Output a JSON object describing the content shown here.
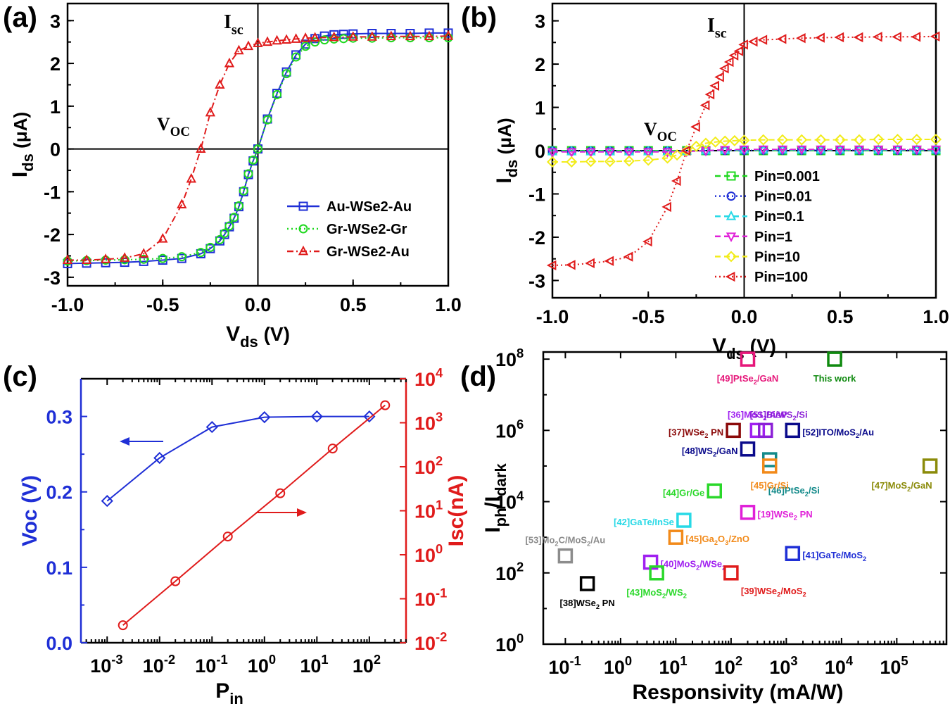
{
  "figure": {
    "panels": [
      {
        "letter_left": "(",
        "letter": "a",
        "letter_right": ")"
      },
      {
        "letter_left": "(",
        "letter": "b",
        "letter_right": ")"
      },
      {
        "letter_left": "(",
        "letter": "c",
        "letter_right": ")"
      },
      {
        "letter_left": "(",
        "letter": "d",
        "letter_right": ")"
      }
    ]
  },
  "chart_data": [
    {
      "id": "a",
      "type": "line",
      "xlabel": "V",
      "xlabel_sub": "ds",
      "xlabel_unit": " (V)",
      "ylabel": "I",
      "ylabel_sub": "ds",
      "ylabel_unit": " (μA)",
      "xlim": [
        -1.0,
        1.0
      ],
      "ylim": [
        -3.2,
        3.4
      ],
      "xticks": [
        "-1.0",
        "-0.5",
        "0.0",
        "0.5",
        "1.0"
      ],
      "yticks": [
        "-3",
        "-2",
        "-1",
        "0",
        "1",
        "2",
        "3"
      ],
      "annotations": [
        {
          "text": "I",
          "sub": "sc"
        },
        {
          "text": "V",
          "sub": "OC"
        }
      ],
      "series": [
        {
          "name": "Au-WSe2-Au",
          "color": "#1f2fd6",
          "marker": "square",
          "dash": "solid",
          "x": [
            -1.0,
            -0.9,
            -0.8,
            -0.7,
            -0.6,
            -0.5,
            -0.4,
            -0.3,
            -0.25,
            -0.2,
            -0.175,
            -0.15,
            -0.125,
            -0.1,
            -0.075,
            -0.05,
            -0.025,
            0,
            0.05,
            0.1,
            0.15,
            0.2,
            0.25,
            0.3,
            0.35,
            0.4,
            0.45,
            0.5,
            0.6,
            0.7,
            0.8,
            0.9,
            1.0
          ],
          "y": [
            -2.68,
            -2.67,
            -2.66,
            -2.65,
            -2.63,
            -2.6,
            -2.56,
            -2.45,
            -2.33,
            -2.15,
            -2.0,
            -1.82,
            -1.62,
            -1.35,
            -1.0,
            -0.6,
            -0.28,
            0,
            0.7,
            1.3,
            1.8,
            2.2,
            2.45,
            2.58,
            2.64,
            2.67,
            2.68,
            2.69,
            2.7,
            2.7,
            2.7,
            2.71,
            2.71
          ]
        },
        {
          "name": "Gr-WSe2-Gr",
          "color": "#1fd81f",
          "marker": "circle",
          "dash": "dot",
          "x": [
            -1.0,
            -0.9,
            -0.8,
            -0.7,
            -0.6,
            -0.5,
            -0.4,
            -0.3,
            -0.25,
            -0.2,
            -0.175,
            -0.15,
            -0.125,
            -0.1,
            -0.075,
            -0.05,
            -0.025,
            0,
            0.05,
            0.1,
            0.15,
            0.2,
            0.25,
            0.3,
            0.35,
            0.4,
            0.45,
            0.5,
            0.6,
            0.7,
            0.8,
            0.9,
            1.0
          ],
          "y": [
            -2.62,
            -2.61,
            -2.6,
            -2.59,
            -2.58,
            -2.56,
            -2.52,
            -2.42,
            -2.3,
            -2.12,
            -1.97,
            -1.8,
            -1.6,
            -1.33,
            -0.98,
            -0.58,
            -0.26,
            0,
            0.68,
            1.27,
            1.76,
            2.15,
            2.4,
            2.5,
            2.55,
            2.57,
            2.58,
            2.59,
            2.59,
            2.6,
            2.6,
            2.6,
            2.6
          ]
        },
        {
          "name": "Gr-WSe2-Au",
          "color": "#e01b1b",
          "marker": "triangle",
          "dash": "dashdot",
          "x": [
            -1.0,
            -0.9,
            -0.8,
            -0.7,
            -0.6,
            -0.5,
            -0.4,
            -0.35,
            -0.3,
            -0.25,
            -0.2,
            -0.15,
            -0.1,
            -0.05,
            0,
            0.05,
            0.1,
            0.15,
            0.2,
            0.25,
            0.3,
            0.4,
            0.5,
            0.6,
            0.7,
            0.8,
            0.9,
            1.0
          ],
          "y": [
            -2.6,
            -2.6,
            -2.58,
            -2.55,
            -2.45,
            -2.1,
            -1.3,
            -0.7,
            0,
            0.85,
            1.5,
            2.0,
            2.3,
            2.4,
            2.47,
            2.5,
            2.53,
            2.55,
            2.57,
            2.59,
            2.6,
            2.61,
            2.62,
            2.62,
            2.63,
            2.63,
            2.63,
            2.64
          ]
        }
      ]
    },
    {
      "id": "b",
      "type": "line",
      "xlabel": "V",
      "xlabel_sub": "ds",
      "xlabel_unit": " (V)",
      "ylabel": "I",
      "ylabel_sub": "ds",
      "ylabel_unit": " (μA)",
      "xlim": [
        -1.0,
        1.0
      ],
      "ylim": [
        -3.4,
        3.4
      ],
      "xticks": [
        "-1.0",
        "-0.5",
        "0.0",
        "0.5",
        "1.0"
      ],
      "yticks": [
        "-3",
        "-2",
        "-1",
        "0",
        "1",
        "2",
        "3"
      ],
      "annotations": [
        {
          "text": "I",
          "sub": "sc"
        },
        {
          "text": "V",
          "sub": "OC"
        }
      ],
      "series": [
        {
          "name": "Pin=0.001",
          "color": "#1fd81f",
          "marker": "square",
          "dash": "dash",
          "x": [
            -1.0,
            -0.9,
            -0.8,
            -0.7,
            -0.6,
            -0.5,
            -0.4,
            -0.3,
            -0.2,
            -0.1,
            0,
            0.1,
            0.2,
            0.3,
            0.4,
            0.5,
            0.6,
            0.7,
            0.8,
            0.9,
            1.0
          ],
          "y": [
            0,
            0,
            0,
            0,
            0,
            0,
            0,
            0,
            0,
            0,
            0,
            0,
            0,
            0,
            0,
            0,
            0,
            0,
            0,
            0,
            0
          ]
        },
        {
          "name": "Pin=0.01",
          "color": "#1f2fd6",
          "marker": "circle",
          "dash": "dot",
          "x": [
            -1.0,
            -0.9,
            -0.8,
            -0.7,
            -0.6,
            -0.5,
            -0.4,
            -0.3,
            -0.2,
            -0.1,
            0,
            0.1,
            0.2,
            0.3,
            0.4,
            0.5,
            0.6,
            0.7,
            0.8,
            0.9,
            1.0
          ],
          "y": [
            -0.01,
            -0.01,
            -0.01,
            -0.01,
            -0.01,
            -0.01,
            -0.01,
            -0.005,
            0,
            0.003,
            0.005,
            0.01,
            0.01,
            0.01,
            0.01,
            0.01,
            0.01,
            0.01,
            0.01,
            0.01,
            0.01
          ]
        },
        {
          "name": "Pin=0.1",
          "color": "#27d9e6",
          "marker": "triangle",
          "dash": "dash",
          "x": [
            -1.0,
            -0.9,
            -0.8,
            -0.7,
            -0.6,
            -0.5,
            -0.4,
            -0.3,
            -0.2,
            -0.1,
            0,
            0.1,
            0.2,
            0.3,
            0.4,
            0.5,
            0.6,
            0.7,
            0.8,
            0.9,
            1.0
          ],
          "y": [
            -0.02,
            -0.02,
            -0.02,
            -0.02,
            -0.02,
            -0.02,
            -0.02,
            -0.01,
            0,
            0.01,
            0.02,
            0.02,
            0.02,
            0.02,
            0.02,
            0.02,
            0.02,
            0.02,
            0.02,
            0.02,
            0.02
          ]
        },
        {
          "name": "Pin=1",
          "color": "#e020d8",
          "marker": "triangle-down",
          "dash": "dash",
          "x": [
            -1.0,
            -0.9,
            -0.8,
            -0.7,
            -0.6,
            -0.5,
            -0.4,
            -0.3,
            -0.2,
            -0.1,
            0,
            0.1,
            0.2,
            0.3,
            0.4,
            0.5,
            0.6,
            0.7,
            0.8,
            0.9,
            1.0
          ],
          "y": [
            -0.03,
            -0.03,
            -0.03,
            -0.03,
            -0.03,
            -0.03,
            -0.03,
            -0.02,
            0,
            0.02,
            0.03,
            0.03,
            0.03,
            0.03,
            0.03,
            0.03,
            0.03,
            0.03,
            0.03,
            0.03,
            0.03
          ]
        },
        {
          "name": "Pin=10",
          "color": "#f2ec1a",
          "marker": "diamond",
          "dash": "dash",
          "x": [
            -1.0,
            -0.9,
            -0.8,
            -0.7,
            -0.6,
            -0.5,
            -0.4,
            -0.35,
            -0.3,
            -0.25,
            -0.2,
            -0.15,
            -0.1,
            -0.05,
            0,
            0.1,
            0.2,
            0.3,
            0.4,
            0.5,
            0.6,
            0.7,
            0.8,
            0.9,
            1.0
          ],
          "y": [
            -0.26,
            -0.26,
            -0.25,
            -0.25,
            -0.24,
            -0.22,
            -0.17,
            -0.1,
            0,
            0.1,
            0.17,
            0.2,
            0.22,
            0.23,
            0.24,
            0.25,
            0.25,
            0.25,
            0.25,
            0.25,
            0.25,
            0.26,
            0.26,
            0.26,
            0.26
          ]
        },
        {
          "name": "Pin=100",
          "color": "#e01b1b",
          "marker": "triangle-left",
          "dash": "dot",
          "x": [
            -1.0,
            -0.9,
            -0.8,
            -0.7,
            -0.6,
            -0.5,
            -0.4,
            -0.35,
            -0.3,
            -0.25,
            -0.2,
            -0.175,
            -0.15,
            -0.125,
            -0.1,
            -0.075,
            -0.05,
            -0.025,
            0,
            0.05,
            0.1,
            0.2,
            0.3,
            0.4,
            0.5,
            0.6,
            0.7,
            0.8,
            0.9,
            1.0
          ],
          "y": [
            -2.65,
            -2.64,
            -2.6,
            -2.55,
            -2.45,
            -2.1,
            -1.3,
            -0.7,
            0,
            0.55,
            1.05,
            1.3,
            1.5,
            1.7,
            1.9,
            2.05,
            2.2,
            2.3,
            2.45,
            2.52,
            2.56,
            2.58,
            2.6,
            2.61,
            2.62,
            2.62,
            2.63,
            2.63,
            2.63,
            2.64
          ]
        }
      ]
    },
    {
      "id": "c",
      "type": "line",
      "xlabel": "P",
      "xlabel_sub": "in",
      "ylabel_left": "Voc (V)",
      "ylabel_right": "Isc(nA)",
      "left_color": "#1f2fd6",
      "right_color": "#e01b1b",
      "x_log_range": [
        -3.5,
        2.7
      ],
      "ylim_left": [
        0.0,
        0.35
      ],
      "y_log_range_right": [
        -2,
        4
      ],
      "xticks": [
        {
          "base": "10",
          "exp": "-3"
        },
        {
          "base": "10",
          "exp": "-2"
        },
        {
          "base": "10",
          "exp": "-1"
        },
        {
          "base": "10",
          "exp": "0"
        },
        {
          "base": "10",
          "exp": "1"
        },
        {
          "base": "10",
          "exp": "2"
        }
      ],
      "yticks_left": [
        "0.0",
        "0.1",
        "0.2",
        "0.3"
      ],
      "yticks_right": [
        {
          "base": "10",
          "exp": "-2"
        },
        {
          "base": "10",
          "exp": "-1"
        },
        {
          "base": "10",
          "exp": "0"
        },
        {
          "base": "10",
          "exp": "1"
        },
        {
          "base": "10",
          "exp": "2"
        },
        {
          "base": "10",
          "exp": "3"
        },
        {
          "base": "10",
          "exp": "4"
        }
      ],
      "series": [
        {
          "name": "Voc",
          "axis": "left",
          "color": "#1f2fd6",
          "marker": "diamond",
          "x": [
            0.001,
            0.01,
            0.1,
            1,
            10,
            100
          ],
          "y": [
            0.188,
            0.245,
            0.286,
            0.299,
            0.3,
            0.3
          ]
        },
        {
          "name": "Isc",
          "axis": "right",
          "color": "#e01b1b",
          "marker": "circle",
          "x": [
            0.002,
            0.02,
            0.2,
            2,
            20,
            200
          ],
          "y": [
            0.025,
            0.25,
            2.6,
            25,
            260,
            2500
          ]
        }
      ]
    },
    {
      "id": "d",
      "type": "scatter",
      "xlabel": "Responsivity (mA/W)",
      "ylabel": "I",
      "ylabel_sub1": "ph",
      "ylabel_mid": "/I",
      "ylabel_sub2": "dark",
      "x_log_range": [
        -1.4,
        5.9
      ],
      "y_log_range": [
        0,
        8.2
      ],
      "xticks": [
        {
          "base": "10",
          "exp": "-1"
        },
        {
          "base": "10",
          "exp": "0"
        },
        {
          "base": "10",
          "exp": "1"
        },
        {
          "base": "10",
          "exp": "2"
        },
        {
          "base": "10",
          "exp": "3"
        },
        {
          "base": "10",
          "exp": "4"
        },
        {
          "base": "10",
          "exp": "5"
        }
      ],
      "yticks": [
        {
          "base": "10",
          "exp": "0"
        },
        {
          "base": "10",
          "exp": "2"
        },
        {
          "base": "10",
          "exp": "4"
        },
        {
          "base": "10",
          "exp": "6"
        },
        {
          "base": "10",
          "exp": "8"
        }
      ],
      "points": [
        {
          "parts": [
            "[49]PtSe",
            "2",
            "/GaN"
          ],
          "x": 200,
          "y": 100000000,
          "color": "#e6177a",
          "label_pos": "below"
        },
        {
          "parts": [
            "This work"
          ],
          "x": 7500,
          "y": 100000000,
          "color": "#0f8a0f",
          "label_pos": "below"
        },
        {
          "parts": [
            "[36]MoS",
            "2",
            "/AsP"
          ],
          "x": 300,
          "y": 1000000,
          "color": "#a020f0",
          "label_pos": "above"
        },
        {
          "parts": [
            "[51]Bi/WS",
            "2",
            "/Si"
          ],
          "x": 420,
          "y": 1000000,
          "color": "#8b1fd6",
          "label_pos": "above2"
        },
        {
          "parts": [
            "[37]WSe",
            "2",
            " PN"
          ],
          "x": 110,
          "y": 1000000,
          "color": "#8b0a0a",
          "label_pos": "left"
        },
        {
          "parts": [
            "[52]ITO/MoS",
            "2",
            "/Au"
          ],
          "x": 1300,
          "y": 1000000,
          "color": "#0a0a8b",
          "label_pos": "right"
        },
        {
          "parts": [
            "[48]WS",
            "2",
            "/GaN"
          ],
          "x": 200,
          "y": 300000,
          "color": "#0a0a8b",
          "label_pos": "left"
        },
        {
          "parts": [
            "[46]PtSe",
            "2",
            "/Si"
          ],
          "x": 500,
          "y": 150000,
          "color": "#138a8a",
          "label_pos": "rightlow"
        },
        {
          "parts": [
            "[45]Gr/Si"
          ],
          "x": 500,
          "y": 100000,
          "color": "#f28a1a",
          "label_pos": "below"
        },
        {
          "parts": [
            "[47]MoS",
            "2",
            "/GaN"
          ],
          "x": 400000,
          "y": 100000,
          "color": "#8b8b0a",
          "label_pos": "belowleft"
        },
        {
          "parts": [
            "[44]Gr/Ge"
          ],
          "x": 50,
          "y": 20000,
          "color": "#2ad82a",
          "label_pos": "left"
        },
        {
          "parts": [
            "[19]WSe",
            "2",
            " PN"
          ],
          "x": 200,
          "y": 5000,
          "color": "#e020d8",
          "label_pos": "right"
        },
        {
          "parts": [
            "[42]GaTe/InSe"
          ],
          "x": 14,
          "y": 3000,
          "color": "#27d9e6",
          "label_pos": "left"
        },
        {
          "parts": [
            "[45]Ga",
            "2",
            "O",
            "3",
            "/ZnO"
          ],
          "x": 10,
          "y": 1000,
          "color": "#f28a1a",
          "label_pos": "right"
        },
        {
          "parts": [
            "[53]Mo",
            "2",
            "C/MoS",
            "2",
            "/Au"
          ],
          "x": 0.1,
          "y": 300,
          "color": "#8c8c8c",
          "label_pos": "above"
        },
        {
          "parts": [
            "[40]MoS",
            "2",
            "/WSe",
            "2"
          ],
          "x": 3.5,
          "y": 200,
          "color": "#a020f0",
          "label_pos": "right"
        },
        {
          "parts": [
            "[41]GaTe/MoS",
            "2"
          ],
          "x": 1300,
          "y": 350,
          "color": "#1f2fd6",
          "label_pos": "right"
        },
        {
          "parts": [
            "[43]MoS",
            "2",
            "/WS",
            "2"
          ],
          "x": 4.5,
          "y": 100,
          "color": "#2ad82a",
          "label_pos": "below"
        },
        {
          "parts": [
            "[39]WSe",
            "2",
            "/MoS",
            "2"
          ],
          "x": 100,
          "y": 100,
          "color": "#e01b1b",
          "label_pos": "belowright"
        },
        {
          "parts": [
            "[38]WSe",
            "2",
            " PN"
          ],
          "x": 0.25,
          "y": 50,
          "color": "#000000",
          "label_pos": "below"
        }
      ]
    }
  ]
}
